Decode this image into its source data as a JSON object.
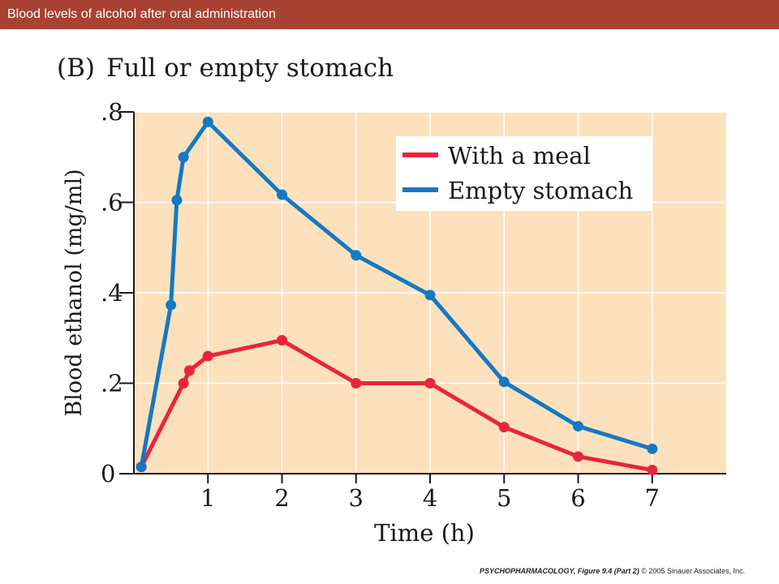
{
  "slide": {
    "title": "Blood levels of alcohol after oral administration",
    "credit": {
      "label": "PSYCHOPHARMACOLOGY, Figure 9.4 (Part 2)",
      "copyright": "© 2005 Sinauer Associates, Inc."
    }
  },
  "colors": {
    "title_bar": "#a84232",
    "plot_background": "#fde1bd",
    "with_meal": "#e8253d",
    "empty_stomach": "#1479c2"
  },
  "chart_data": {
    "type": "line",
    "panel_label": "(B)",
    "title": "Full or empty stomach",
    "xlabel": "Time (h)",
    "ylabel": "Blood ethanol (mg/ml)",
    "xlim": [
      0,
      8
    ],
    "ylim": [
      0,
      0.8
    ],
    "xticks": [
      1,
      2,
      3,
      4,
      5,
      6,
      7
    ],
    "xtick_labels": [
      "1",
      "2",
      "3",
      "4",
      "5",
      "6",
      "7"
    ],
    "yticks": [
      0,
      0.2,
      0.4,
      0.6,
      0.8
    ],
    "ytick_labels": [
      "0",
      ".2",
      ".4",
      ".6",
      ".8"
    ],
    "grid": true,
    "legend_position": "top-right",
    "series": [
      {
        "name": "With a meal",
        "color": "#e8253d",
        "x": [
          0.1,
          0.67,
          0.75,
          1.0,
          2.0,
          3.0,
          4.0,
          5.0,
          6.0,
          7.0
        ],
        "y": [
          0.015,
          0.2,
          0.228,
          0.26,
          0.295,
          0.2,
          0.2,
          0.103,
          0.038,
          0.008
        ]
      },
      {
        "name": "Empty stomach",
        "color": "#1479c2",
        "x": [
          0.1,
          0.5,
          0.58,
          0.67,
          1.0,
          2.0,
          3.0,
          4.0,
          5.0,
          6.0,
          7.0
        ],
        "y": [
          0.015,
          0.373,
          0.605,
          0.7,
          0.778,
          0.617,
          0.483,
          0.395,
          0.203,
          0.105,
          0.055
        ]
      }
    ]
  }
}
